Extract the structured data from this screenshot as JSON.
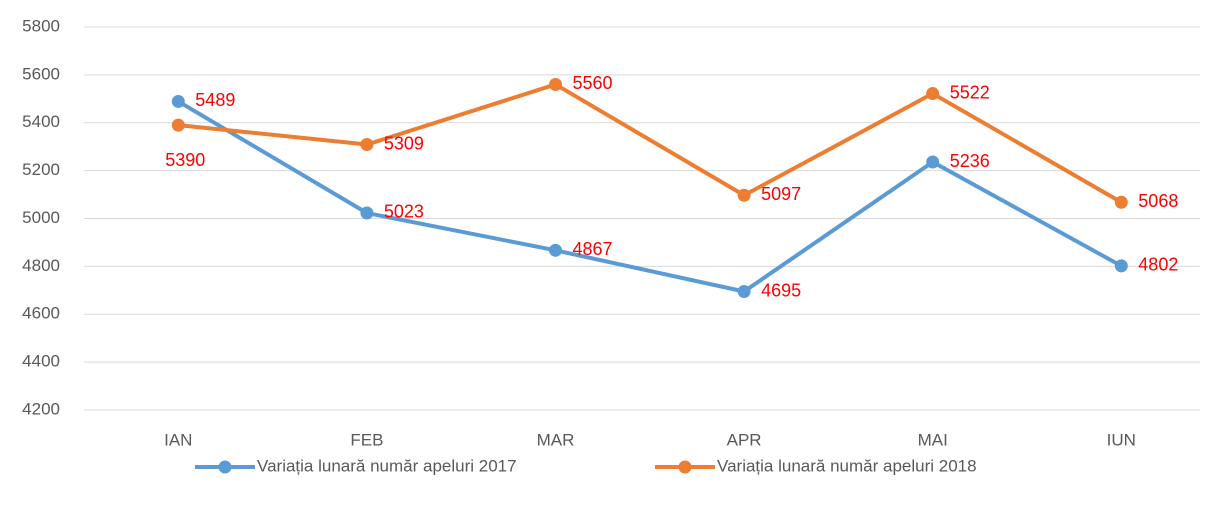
{
  "chart_data": {
    "type": "line",
    "categories": [
      "IAN",
      "FEB",
      "MAR",
      "APR",
      "MAI",
      "IUN"
    ],
    "series": [
      {
        "name": "Variația lunară număr apeluri 2017",
        "color": "#5b9bd5",
        "values": [
          5489,
          5023,
          4867,
          4695,
          5236,
          4802
        ]
      },
      {
        "name": "Variația lunară număr apeluri 2018",
        "color": "#ed7d31",
        "values": [
          5390,
          5309,
          5560,
          5097,
          5522,
          5068
        ]
      }
    ],
    "ylim": [
      4200,
      5800
    ],
    "yticks": [
      4200,
      4400,
      4600,
      4800,
      5000,
      5200,
      5400,
      5600,
      5800
    ],
    "grid": true,
    "legend": "bottom",
    "label_color": "#ff0000"
  }
}
